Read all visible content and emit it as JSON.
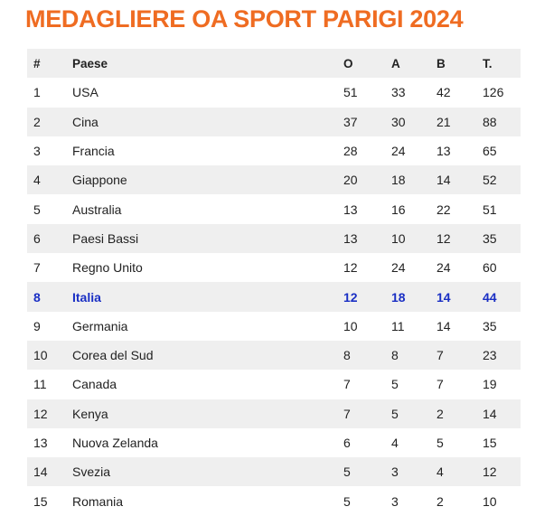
{
  "title": "MEDAGLIERE OA SPORT PARIGI 2024",
  "table": {
    "headers": {
      "rank": "#",
      "country": "Paese",
      "gold": "O",
      "silver": "A",
      "bronze": "B",
      "total": "T."
    },
    "rows": [
      {
        "rank": "1",
        "country": "USA",
        "gold": "51",
        "silver": "33",
        "bronze": "42",
        "total": "126"
      },
      {
        "rank": "2",
        "country": "Cina",
        "gold": "37",
        "silver": "30",
        "bronze": "21",
        "total": "88"
      },
      {
        "rank": "3",
        "country": "Francia",
        "gold": "28",
        "silver": "24",
        "bronze": "13",
        "total": "65"
      },
      {
        "rank": "4",
        "country": "Giappone",
        "gold": "20",
        "silver": "18",
        "bronze": "14",
        "total": "52"
      },
      {
        "rank": "5",
        "country": "Australia",
        "gold": "13",
        "silver": "16",
        "bronze": "22",
        "total": "51"
      },
      {
        "rank": "6",
        "country": "Paesi Bassi",
        "gold": "13",
        "silver": "10",
        "bronze": "12",
        "total": "35"
      },
      {
        "rank": "7",
        "country": "Regno Unito",
        "gold": "12",
        "silver": "24",
        "bronze": "24",
        "total": "60"
      },
      {
        "rank": "8",
        "country": "Italia",
        "gold": "12",
        "silver": "18",
        "bronze": "14",
        "total": "44"
      },
      {
        "rank": "9",
        "country": "Germania",
        "gold": "10",
        "silver": "11",
        "bronze": "14",
        "total": "35"
      },
      {
        "rank": "10",
        "country": "Corea del Sud",
        "gold": "8",
        "silver": "8",
        "bronze": "7",
        "total": "23"
      },
      {
        "rank": "11",
        "country": "Canada",
        "gold": "7",
        "silver": "5",
        "bronze": "7",
        "total": "19"
      },
      {
        "rank": "12",
        "country": "Kenya",
        "gold": "7",
        "silver": "5",
        "bronze": "2",
        "total": "14"
      },
      {
        "rank": "13",
        "country": "Nuova Zelanda",
        "gold": "6",
        "silver": "4",
        "bronze": "5",
        "total": "15"
      },
      {
        "rank": "14",
        "country": "Svezia",
        "gold": "5",
        "silver": "3",
        "bronze": "4",
        "total": "12"
      },
      {
        "rank": "15",
        "country": "Romania",
        "gold": "5",
        "silver": "3",
        "bronze": "2",
        "total": "10"
      }
    ],
    "highlighted_country": "Italia"
  },
  "colors": {
    "title": "#ef6c22",
    "highlight": "#1a2fc4",
    "stripe": "#efefef"
  }
}
